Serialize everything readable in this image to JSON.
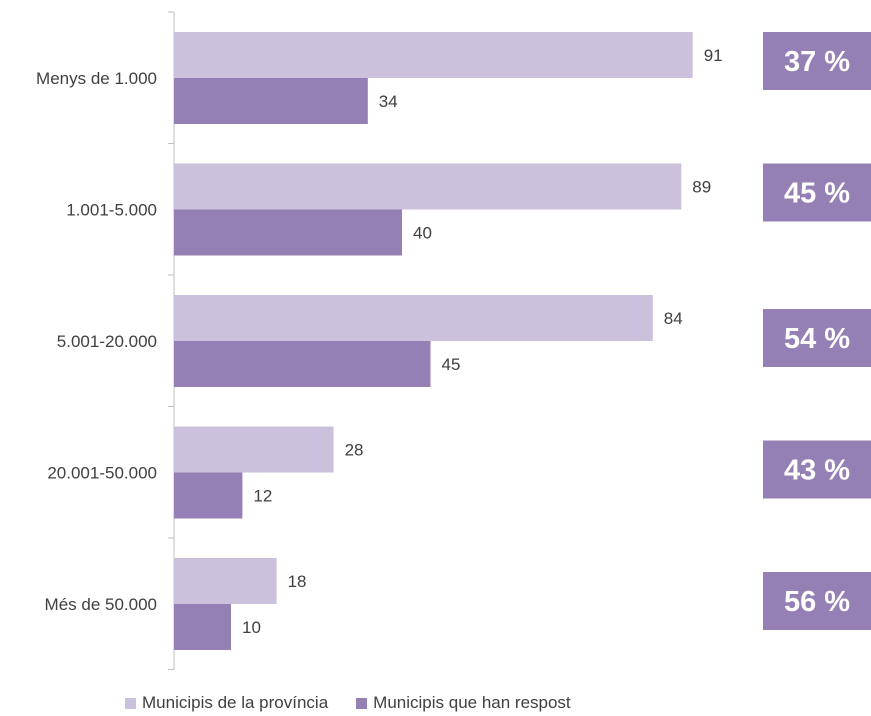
{
  "chart_data": {
    "type": "bar",
    "orientation": "horizontal",
    "categories": [
      "Menys de 1.000",
      "1.001-5.000",
      "5.001-20.000",
      "20.001-50.000",
      "Més de 50.000"
    ],
    "series": [
      {
        "name": "Municipis de la província",
        "values": [
          91,
          89,
          84,
          28,
          18
        ],
        "color": "#ccc1dc"
      },
      {
        "name": "Municipis que han respost",
        "values": [
          34,
          40,
          45,
          12,
          10
        ],
        "color": "#9480b4"
      }
    ],
    "response_rates": [
      "37 %",
      "45 %",
      "54 %",
      "43 %",
      "56 %"
    ],
    "response_rate_color": "#9480b4",
    "legend_position": "bottom",
    "grid": false,
    "xlim": [
      0,
      100
    ]
  }
}
